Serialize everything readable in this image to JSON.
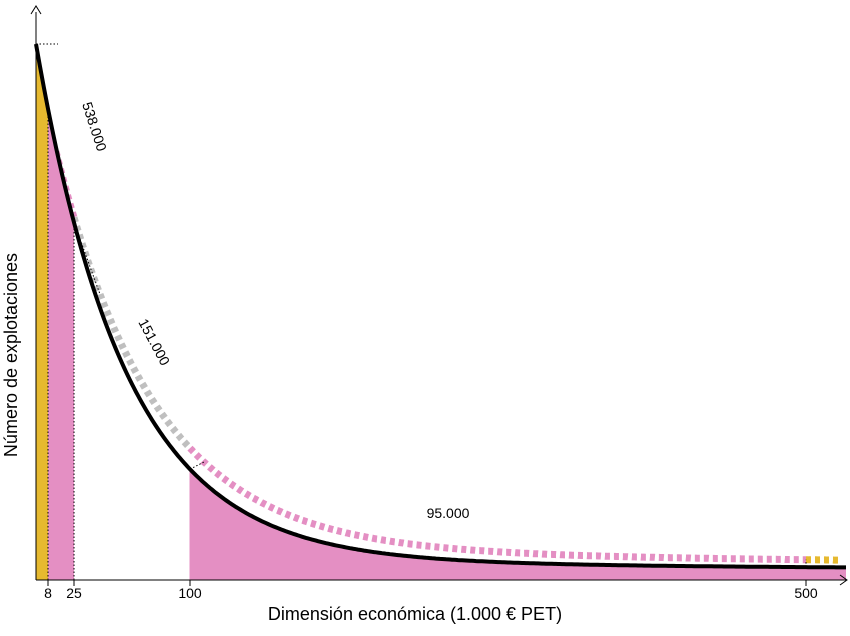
{
  "chart_data": {
    "type": "area",
    "xlabel": "Dimensión económica (1.000 € PET)",
    "ylabel": "Número de explotaciones",
    "x_ticks": [
      {
        "value": 8,
        "label": "8"
      },
      {
        "value": 25,
        "label": "25"
      },
      {
        "value": 100,
        "label": "100"
      },
      {
        "value": 500,
        "label": "500"
      }
    ],
    "xlim": [
      0,
      520
    ],
    "curve": {
      "shape": "decreasing-exponential",
      "color": "#000000"
    },
    "segments": [
      {
        "from": 0,
        "to": 8,
        "color": "#e6b92f"
      },
      {
        "from": 8,
        "to": 25,
        "color": "#e48fc3"
      },
      {
        "from": 100,
        "to": 520,
        "color": "#e48fc3"
      }
    ],
    "annotations": [
      {
        "label": "538.000",
        "color": "#e6b92f",
        "range": [
          0,
          8
        ]
      },
      {
        "label": "538.000",
        "color": "#e48fc3",
        "range": [
          8,
          25
        ]
      },
      {
        "label": "151.000",
        "color": "#bfbfbf",
        "range": [
          25,
          100
        ]
      },
      {
        "label": "95.000",
        "color": "#e48fc3",
        "range": [
          100,
          500
        ]
      },
      {
        "label": "95.000",
        "color": "#e6b92f",
        "range": [
          500,
          520
        ]
      }
    ],
    "grid": false,
    "legend": "none"
  }
}
